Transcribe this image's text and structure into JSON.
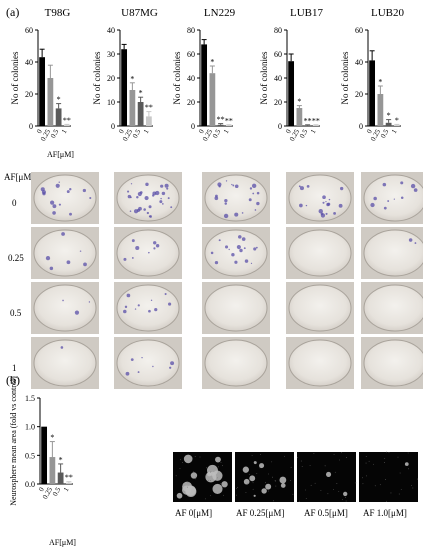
{
  "panel_a_label": "(a)",
  "panel_b_label": "(b)",
  "series_colors": [
    "#000000",
    "#969696",
    "#5a5a5a",
    "#c8c8c8"
  ],
  "chart_data": [
    {
      "type": "bar",
      "title": "T98G",
      "categories": [
        "0",
        "0.25",
        "0.5",
        "1"
      ],
      "values": [
        43,
        30,
        11,
        0.5
      ],
      "errors": [
        5,
        8,
        3,
        0.5
      ],
      "annotations": [
        "",
        "",
        "*",
        "**"
      ],
      "xlabel": "AF[μM]",
      "ylabel": "No of colonies",
      "ylim": [
        0,
        60
      ],
      "yticks": [
        "0",
        "20",
        "40",
        "60"
      ]
    },
    {
      "type": "bar",
      "title": "U87MG",
      "categories": [
        "0",
        "0.25",
        "0.5",
        "1"
      ],
      "values": [
        32,
        15,
        10,
        4
      ],
      "errors": [
        2,
        3,
        2,
        2
      ],
      "annotations": [
        "",
        "*",
        "*",
        "**"
      ],
      "xlabel": "",
      "ylabel": "No of colonies",
      "ylim": [
        0,
        40
      ],
      "yticks": [
        "0",
        "10",
        "20",
        "30",
        "40"
      ]
    },
    {
      "type": "bar",
      "title": "LN229",
      "categories": [
        "0",
        "0.25",
        "0.5",
        "1"
      ],
      "values": [
        68,
        44,
        1,
        0.5
      ],
      "errors": [
        4,
        6,
        1,
        0.5
      ],
      "annotations": [
        "",
        "*",
        "**",
        "**"
      ],
      "xlabel": "",
      "ylabel": "No of colonies",
      "ylim": [
        0,
        80
      ],
      "yticks": [
        "0",
        "20",
        "40",
        "60",
        "80"
      ]
    },
    {
      "type": "bar",
      "title": "LUB17",
      "categories": [
        "0",
        "0.25",
        "0.5",
        "1"
      ],
      "values": [
        54,
        15,
        0.5,
        0.5
      ],
      "errors": [
        6,
        2,
        0.5,
        0.5
      ],
      "annotations": [
        "",
        "*",
        "**",
        "**"
      ],
      "xlabel": "",
      "ylabel": "No of colonies",
      "ylim": [
        0,
        80
      ],
      "yticks": [
        "0",
        "20",
        "40",
        "60",
        "80"
      ]
    },
    {
      "type": "bar",
      "title": "LUB20",
      "categories": [
        "0",
        "0.25",
        "0.5",
        "1"
      ],
      "values": [
        41,
        20,
        2,
        0.5
      ],
      "errors": [
        6,
        5,
        2,
        0.5
      ],
      "annotations": [
        "",
        "*",
        "*",
        "*"
      ],
      "xlabel": "",
      "ylabel": "No of colonies",
      "ylim": [
        0,
        60
      ],
      "yticks": [
        "0",
        "20",
        "40",
        "60"
      ]
    },
    {
      "type": "bar",
      "title": "",
      "categories": [
        "0",
        "0.25",
        "0.5",
        "1"
      ],
      "values": [
        1.0,
        0.47,
        0.2,
        0.02
      ],
      "errors": [
        0,
        0.27,
        0.15,
        0.02
      ],
      "annotations": [
        "",
        "*",
        "*",
        "**"
      ],
      "xlabel": "AF[μM]",
      "ylabel": "Neurosphere mean area (fold vs control)",
      "ylim": [
        0,
        1.5
      ],
      "yticks": [
        "0.0",
        "0.5",
        "1.0",
        "1.5"
      ]
    }
  ],
  "plates": {
    "row_header": "AF[μM]",
    "rows": [
      "0",
      "0.25",
      "0.5",
      "1"
    ]
  },
  "micrographs": {
    "labels": [
      "AF 0[μM]",
      "AF 0.25[μM]",
      "AF 0.5[μM]",
      "AF 1.0[μM]"
    ]
  }
}
